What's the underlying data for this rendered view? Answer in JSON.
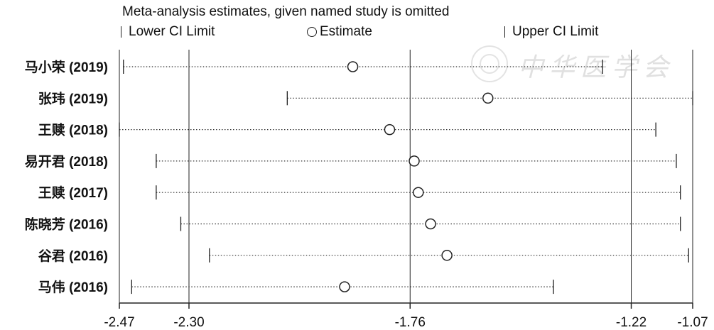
{
  "chart_data": {
    "type": "forest",
    "title": "Meta-analysis estimates, given named study is omitted",
    "legend": {
      "lower": "Lower CI Limit",
      "estimate": "Estimate",
      "upper": "Upper CI Limit"
    },
    "xlim": [
      -2.47,
      -1.07
    ],
    "xticks": [
      {
        "value": -2.47,
        "label": "-2.47"
      },
      {
        "value": -2.3,
        "label": "-2.30"
      },
      {
        "value": -1.76,
        "label": "-1.76"
      },
      {
        "value": -1.22,
        "label": "-1.22"
      },
      {
        "value": -1.07,
        "label": "-1.07"
      }
    ],
    "reference_lines": [
      -2.3,
      -1.76,
      -1.22
    ],
    "studies": [
      {
        "name": "马小荣 (2019)",
        "lower": -2.46,
        "estimate": -1.9,
        "upper": -1.29
      },
      {
        "name": "张玮 (2019)",
        "lower": -2.06,
        "estimate": -1.57,
        "upper": -1.07
      },
      {
        "name": "王赎 (2018)",
        "lower": -2.47,
        "estimate": -1.81,
        "upper": -1.16
      },
      {
        "name": "易开君 (2018)",
        "lower": -2.38,
        "estimate": -1.75,
        "upper": -1.11
      },
      {
        "name": "王赎 (2017)",
        "lower": -2.38,
        "estimate": -1.74,
        "upper": -1.1
      },
      {
        "name": "陈晓芳 (2016)",
        "lower": -2.32,
        "estimate": -1.71,
        "upper": -1.1
      },
      {
        "name": "谷君 (2016)",
        "lower": -2.25,
        "estimate": -1.67,
        "upper": -1.08
      },
      {
        "name": "马伟 (2016)",
        "lower": -2.44,
        "estimate": -1.92,
        "upper": -1.41
      }
    ]
  },
  "watermark": {
    "text": "中华医学会",
    "icon": "seal-icon"
  }
}
